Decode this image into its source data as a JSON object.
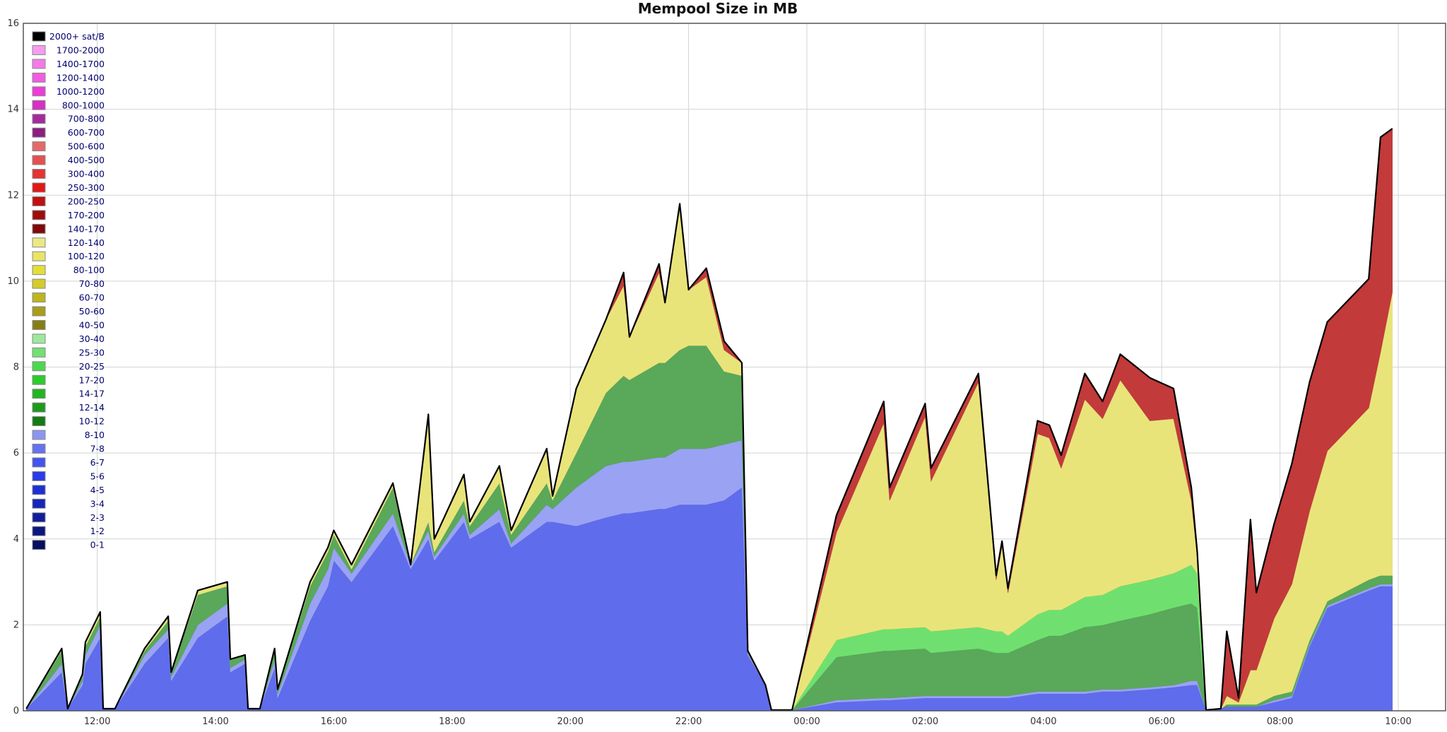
{
  "chart_data": {
    "type": "area",
    "stacked": true,
    "title": "Mempool Size in MB",
    "xlabel": "",
    "ylabel": "",
    "ylim": [
      0,
      16
    ],
    "xlim_hours": [
      10.75,
      34.8
    ],
    "x_tick_labels": [
      "12:00",
      "14:00",
      "16:00",
      "18:00",
      "20:00",
      "22:00",
      "00:00",
      "02:00",
      "04:00",
      "06:00",
      "08:00",
      "10:00"
    ],
    "y_tick_labels": [
      "0",
      "2",
      "4",
      "6",
      "8",
      "10",
      "12",
      "14",
      "16"
    ],
    "grid": true,
    "legend_position": "top-left",
    "legend": [
      {
        "label": "2000+ sat/B",
        "color": "#000000"
      },
      {
        "label": "1700-2000",
        "color": "#f59cf0"
      },
      {
        "label": "1400-1700",
        "color": "#f47ae8"
      },
      {
        "label": "1200-1400",
        "color": "#f25ce0"
      },
      {
        "label": "1000-1200",
        "color": "#ee3cd6"
      },
      {
        "label": "800-1000",
        "color": "#d82fc5"
      },
      {
        "label": "700-800",
        "color": "#a62a9f"
      },
      {
        "label": "600-700",
        "color": "#8a1f80"
      },
      {
        "label": "500-600",
        "color": "#e46a6a"
      },
      {
        "label": "400-500",
        "color": "#e45050"
      },
      {
        "label": "300-400",
        "color": "#e43434"
      },
      {
        "label": "250-300",
        "color": "#e01818"
      },
      {
        "label": "200-250",
        "color": "#c01010"
      },
      {
        "label": "170-200",
        "color": "#a00c0c"
      },
      {
        "label": "140-170",
        "color": "#800808"
      },
      {
        "label": "120-140",
        "color": "#ebe884"
      },
      {
        "label": "100-120",
        "color": "#e8e466"
      },
      {
        "label": "80-100",
        "color": "#e4de3a"
      },
      {
        "label": "70-80",
        "color": "#d4cc2a"
      },
      {
        "label": "60-70",
        "color": "#bdb522"
      },
      {
        "label": "50-60",
        "color": "#a69e1c"
      },
      {
        "label": "40-50",
        "color": "#857e16"
      },
      {
        "label": "30-40",
        "color": "#9ee89e"
      },
      {
        "label": "25-30",
        "color": "#72e072"
      },
      {
        "label": "20-25",
        "color": "#4cd84c"
      },
      {
        "label": "17-20",
        "color": "#2ccc2c"
      },
      {
        "label": "14-17",
        "color": "#22b422"
      },
      {
        "label": "12-14",
        "color": "#1c9a1c"
      },
      {
        "label": "10-12",
        "color": "#127c12"
      },
      {
        "label": "8-10",
        "color": "#8c96f0"
      },
      {
        "label": "7-8",
        "color": "#6672ee"
      },
      {
        "label": "6-7",
        "color": "#4454ec"
      },
      {
        "label": "5-6",
        "color": "#2a3ce8"
      },
      {
        "label": "4-5",
        "color": "#1c30d4"
      },
      {
        "label": "3-4",
        "color": "#1626b8"
      },
      {
        "label": "2-3",
        "color": "#101e9c"
      },
      {
        "label": "1-2",
        "color": "#0b1680"
      },
      {
        "label": "0-1",
        "color": "#060e60"
      }
    ],
    "bands": [
      {
        "name": "0-8",
        "color": "#5f6cec"
      },
      {
        "name": "8-10",
        "color": "#9aa2f4"
      },
      {
        "name": "10-40",
        "color": "#5aa85a"
      },
      {
        "name": "17-30",
        "color": "#6fe06f"
      },
      {
        "name": "40-140",
        "color": "#e8e47a"
      },
      {
        "name": "140-400",
        "color": "#c23a3a"
      }
    ],
    "series": [
      {
        "t": 10.8,
        "v": [
          0.05,
          0,
          0,
          0,
          0,
          0
        ]
      },
      {
        "t": 11.4,
        "v": [
          0.9,
          0.2,
          0.3,
          0,
          0.05,
          0
        ]
      },
      {
        "t": 11.5,
        "v": [
          0.05,
          0,
          0,
          0,
          0,
          0
        ]
      },
      {
        "t": 11.75,
        "v": [
          0.6,
          0.1,
          0.1,
          0,
          0.05,
          0
        ]
      },
      {
        "t": 11.8,
        "v": [
          1.1,
          0.2,
          0.2,
          0,
          0.1,
          0
        ]
      },
      {
        "t": 12.05,
        "v": [
          1.7,
          0.3,
          0.2,
          0,
          0.1,
          0
        ]
      },
      {
        "t": 12.1,
        "v": [
          0.05,
          0,
          0,
          0,
          0,
          0
        ]
      },
      {
        "t": 12.3,
        "v": [
          0.05,
          0,
          0,
          0,
          0,
          0
        ]
      },
      {
        "t": 12.8,
        "v": [
          1.1,
          0.2,
          0.1,
          0,
          0.05,
          0
        ]
      },
      {
        "t": 13.2,
        "v": [
          1.7,
          0.2,
          0.2,
          0,
          0.1,
          0
        ]
      },
      {
        "t": 13.25,
        "v": [
          0.7,
          0.1,
          0.1,
          0,
          0,
          0
        ]
      },
      {
        "t": 13.7,
        "v": [
          1.7,
          0.3,
          0.7,
          0,
          0.1,
          0
        ]
      },
      {
        "t": 14.2,
        "v": [
          2.2,
          0.3,
          0.4,
          0,
          0.1,
          0
        ]
      },
      {
        "t": 14.25,
        "v": [
          0.9,
          0.1,
          0.2,
          0,
          0,
          0
        ]
      },
      {
        "t": 14.5,
        "v": [
          1.1,
          0.1,
          0.1,
          0,
          0,
          0
        ]
      },
      {
        "t": 14.55,
        "v": [
          0.05,
          0,
          0,
          0,
          0,
          0
        ]
      },
      {
        "t": 14.75,
        "v": [
          0.05,
          0,
          0,
          0,
          0,
          0
        ]
      },
      {
        "t": 15.0,
        "v": [
          1.0,
          0.2,
          0.2,
          0,
          0.05,
          0
        ]
      },
      {
        "t": 15.05,
        "v": [
          0.3,
          0.1,
          0.1,
          0,
          0,
          0
        ]
      },
      {
        "t": 15.6,
        "v": [
          2.1,
          0.4,
          0.4,
          0,
          0.1,
          0
        ]
      },
      {
        "t": 15.9,
        "v": [
          2.9,
          0.4,
          0.4,
          0,
          0.1,
          0
        ]
      },
      {
        "t": 16.0,
        "v": [
          3.5,
          0.3,
          0.3,
          0,
          0.1,
          0
        ]
      },
      {
        "t": 16.3,
        "v": [
          3.0,
          0.2,
          0.1,
          0,
          0.1,
          0
        ]
      },
      {
        "t": 17.0,
        "v": [
          4.3,
          0.3,
          0.6,
          0,
          0.1,
          0
        ]
      },
      {
        "t": 17.3,
        "v": [
          3.3,
          0.1,
          0,
          0,
          0,
          0
        ]
      },
      {
        "t": 17.6,
        "v": [
          4.0,
          0.2,
          0.2,
          0,
          2.5,
          0
        ]
      },
      {
        "t": 17.7,
        "v": [
          3.5,
          0.1,
          0.1,
          0,
          0.3,
          0
        ]
      },
      {
        "t": 18.2,
        "v": [
          4.4,
          0.2,
          0.3,
          0,
          0.6,
          0
        ]
      },
      {
        "t": 18.3,
        "v": [
          4.0,
          0.1,
          0.2,
          0,
          0.1,
          0
        ]
      },
      {
        "t": 18.8,
        "v": [
          4.4,
          0.3,
          0.6,
          0,
          0.4,
          0
        ]
      },
      {
        "t": 19.0,
        "v": [
          3.8,
          0.1,
          0.2,
          0,
          0.1,
          0
        ]
      },
      {
        "t": 19.6,
        "v": [
          4.4,
          0.4,
          0.5,
          0,
          0.8,
          0
        ]
      },
      {
        "t": 19.7,
        "v": [
          4.4,
          0.3,
          0.2,
          0,
          0.1,
          0
        ]
      },
      {
        "t": 20.1,
        "v": [
          4.3,
          0.9,
          0.8,
          0,
          1.5,
          0
        ]
      },
      {
        "t": 20.6,
        "v": [
          4.5,
          1.2,
          1.7,
          0,
          1.7,
          0
        ]
      },
      {
        "t": 20.9,
        "v": [
          4.6,
          1.2,
          2.0,
          0,
          2.1,
          0.3
        ]
      },
      {
        "t": 21.0,
        "v": [
          4.6,
          1.2,
          1.9,
          0,
          1.0,
          0
        ]
      },
      {
        "t": 21.5,
        "v": [
          4.7,
          1.2,
          2.2,
          0,
          2.1,
          0.2
        ]
      },
      {
        "t": 21.6,
        "v": [
          4.7,
          1.2,
          2.2,
          0,
          1.4,
          0
        ]
      },
      {
        "t": 21.85,
        "v": [
          4.8,
          1.3,
          2.3,
          0,
          3.4,
          0
        ]
      },
      {
        "t": 22.0,
        "v": [
          4.8,
          1.3,
          2.4,
          0,
          1.3,
          0
        ]
      },
      {
        "t": 22.3,
        "v": [
          4.8,
          1.3,
          2.4,
          0,
          1.6,
          0.2
        ]
      },
      {
        "t": 22.6,
        "v": [
          4.9,
          1.3,
          1.7,
          0,
          0.5,
          0.2
        ]
      },
      {
        "t": 22.9,
        "v": [
          5.2,
          1.1,
          1.5,
          0,
          0.3,
          0
        ]
      },
      {
        "t": 23.0,
        "v": [
          1.3,
          0.05,
          0.05,
          0,
          0,
          0
        ]
      },
      {
        "t": 23.3,
        "v": [
          0.6,
          0,
          0,
          0,
          0,
          0
        ]
      },
      {
        "t": 23.4,
        "v": [
          0.02,
          0,
          0,
          0,
          0,
          0
        ]
      },
      {
        "t": 23.75,
        "v": [
          0.02,
          0,
          0,
          0,
          0,
          0
        ]
      },
      {
        "t": 24.5,
        "v": [
          0.2,
          0.05,
          1.0,
          0.4,
          2.5,
          0.4
        ]
      },
      {
        "t": 25.3,
        "v": [
          0.25,
          0.05,
          1.1,
          0.5,
          4.8,
          0.5
        ]
      },
      {
        "t": 25.4,
        "v": [
          0.25,
          0.05,
          1.1,
          0.5,
          3.0,
          0.3
        ]
      },
      {
        "t": 26.0,
        "v": [
          0.3,
          0.05,
          1.1,
          0.5,
          4.9,
          0.3
        ]
      },
      {
        "t": 26.1,
        "v": [
          0.3,
          0.05,
          1.0,
          0.5,
          3.5,
          0.3
        ]
      },
      {
        "t": 26.9,
        "v": [
          0.3,
          0.05,
          1.1,
          0.5,
          5.7,
          0.2
        ]
      },
      {
        "t": 27.2,
        "v": [
          0.3,
          0.05,
          1.0,
          0.5,
          1.2,
          0.1
        ]
      },
      {
        "t": 27.3,
        "v": [
          0.3,
          0.05,
          1.0,
          0.5,
          2.0,
          0.1
        ]
      },
      {
        "t": 27.4,
        "v": [
          0.3,
          0.05,
          1.0,
          0.4,
          1.0,
          0.1
        ]
      },
      {
        "t": 27.9,
        "v": [
          0.4,
          0.05,
          1.2,
          0.6,
          4.2,
          0.3
        ]
      },
      {
        "t": 28.1,
        "v": [
          0.4,
          0.05,
          1.3,
          0.6,
          4.0,
          0.3
        ]
      },
      {
        "t": 28.3,
        "v": [
          0.4,
          0.05,
          1.3,
          0.6,
          3.3,
          0.3
        ]
      },
      {
        "t": 28.7,
        "v": [
          0.4,
          0.05,
          1.5,
          0.7,
          4.6,
          0.6
        ]
      },
      {
        "t": 29.0,
        "v": [
          0.45,
          0.05,
          1.5,
          0.7,
          4.1,
          0.4
        ]
      },
      {
        "t": 29.3,
        "v": [
          0.45,
          0.05,
          1.6,
          0.8,
          4.8,
          0.6
        ]
      },
      {
        "t": 29.8,
        "v": [
          0.5,
          0.05,
          1.7,
          0.8,
          3.7,
          1.0
        ]
      },
      {
        "t": 30.2,
        "v": [
          0.55,
          0.05,
          1.8,
          0.8,
          3.6,
          0.7
        ]
      },
      {
        "t": 30.5,
        "v": [
          0.6,
          0.1,
          1.8,
          0.9,
          1.5,
          0.3
        ]
      },
      {
        "t": 30.6,
        "v": [
          0.6,
          0.1,
          1.7,
          0.8,
          0.4,
          0.1
        ]
      },
      {
        "t": 30.75,
        "v": [
          0.02,
          0,
          0,
          0,
          0,
          0
        ]
      },
      {
        "t": 31.0,
        "v": [
          0.05,
          0,
          0,
          0,
          0,
          0
        ]
      },
      {
        "t": 31.1,
        "v": [
          0.1,
          0,
          0.05,
          0,
          0.2,
          1.5
        ]
      },
      {
        "t": 31.3,
        "v": [
          0.1,
          0,
          0.05,
          0,
          0.05,
          0.1
        ]
      },
      {
        "t": 31.5,
        "v": [
          0.1,
          0,
          0.05,
          0,
          0.8,
          3.5
        ]
      },
      {
        "t": 31.6,
        "v": [
          0.1,
          0,
          0.05,
          0,
          0.8,
          1.8
        ]
      },
      {
        "t": 31.9,
        "v": [
          0.2,
          0.05,
          0.1,
          0,
          1.8,
          2.2
        ]
      },
      {
        "t": 32.2,
        "v": [
          0.3,
          0.05,
          0.1,
          0,
          2.5,
          2.8
        ]
      },
      {
        "t": 32.5,
        "v": [
          1.5,
          0.05,
          0.1,
          0,
          3.0,
          3.0
        ]
      },
      {
        "t": 32.8,
        "v": [
          2.4,
          0.05,
          0.1,
          0,
          3.5,
          3.0
        ]
      },
      {
        "t": 33.5,
        "v": [
          2.8,
          0.05,
          0.2,
          0,
          4.0,
          3.0
        ]
      },
      {
        "t": 33.7,
        "v": [
          2.9,
          0.05,
          0.2,
          0,
          5.2,
          5.0
        ]
      },
      {
        "t": 33.9,
        "v": [
          2.9,
          0.05,
          0.2,
          0,
          6.6,
          3.8
        ]
      }
    ]
  },
  "colors": {
    "outline": "#000000",
    "grid": "#d3d3d3",
    "border": "#555555"
  }
}
